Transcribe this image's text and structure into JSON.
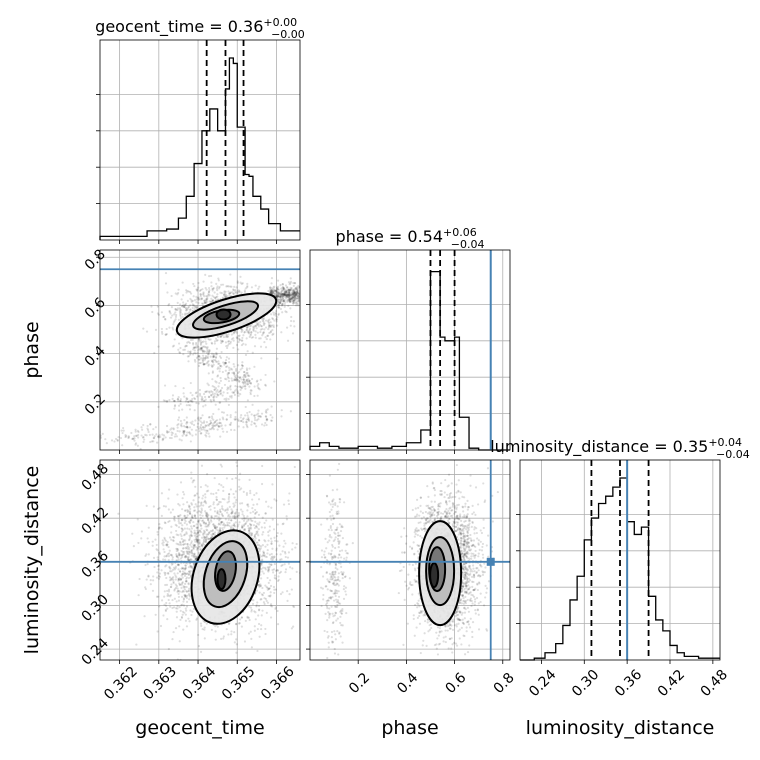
{
  "figure": {
    "params": [
      "geocent_time",
      "phase",
      "luminosity_distance"
    ],
    "injection_color": "#4682b4",
    "contour_fill_colors": [
      "#e6e6e6",
      "#b9b9b9",
      "#6f6f6f",
      "#262626"
    ]
  },
  "chart_data": [
    {
      "type": "histogram",
      "param": "geocent_time",
      "title": {
        "main": "geocent_time = 0.36",
        "sup": "+0.00",
        "sub": "−0.00"
      },
      "xlim": [
        0.3615,
        0.3666
      ],
      "grid": true,
      "quantiles": [
        0.36422,
        0.3647,
        0.36516
      ],
      "bins": [
        [
          0.3615,
          0.3627,
          0.02
        ],
        [
          0.3627,
          0.3632,
          0.05
        ],
        [
          0.3632,
          0.3635,
          0.06
        ],
        [
          0.3635,
          0.3637,
          0.12
        ],
        [
          0.3637,
          0.3639,
          0.24
        ],
        [
          0.3639,
          0.3641,
          0.42
        ],
        [
          0.3641,
          0.3643,
          0.6
        ],
        [
          0.3643,
          0.3645,
          0.72
        ],
        [
          0.3645,
          0.3647,
          0.6
        ],
        [
          0.3647,
          0.3648,
          0.83
        ],
        [
          0.3648,
          0.3649,
          1.0
        ],
        [
          0.3649,
          0.365,
          0.97
        ],
        [
          0.365,
          0.3652,
          0.62
        ],
        [
          0.3652,
          0.3653,
          0.36
        ],
        [
          0.3653,
          0.3654,
          0.35
        ],
        [
          0.3654,
          0.3656,
          0.24
        ],
        [
          0.3656,
          0.3658,
          0.17
        ],
        [
          0.3658,
          0.3661,
          0.09
        ],
        [
          0.3661,
          0.3666,
          0.05
        ]
      ]
    },
    {
      "type": "scatter",
      "params": [
        "geocent_time",
        "phase"
      ],
      "xlim": [
        0.3615,
        0.3666
      ],
      "ylim": [
        0.0,
        0.83
      ],
      "yticks": [
        "0.2",
        "0.4",
        "0.6",
        "0.8"
      ],
      "ytick_values": [
        0.2,
        0.4,
        0.6,
        0.8
      ],
      "ylabel": "phase",
      "injection_y": 0.75,
      "cluster": [
        0.36465,
        0.55
      ],
      "grid": true
    },
    {
      "type": "histogram",
      "param": "phase",
      "title": {
        "main": "phase = 0.54",
        "sup": "+0.06",
        "sub": "−0.04"
      },
      "xlim": [
        0.0,
        0.83
      ],
      "grid": true,
      "injection_x": 0.75,
      "quantiles": [
        0.5,
        0.54,
        0.6
      ],
      "bins": [
        [
          0.0,
          0.04,
          0.02
        ],
        [
          0.04,
          0.08,
          0.04
        ],
        [
          0.08,
          0.12,
          0.02
        ],
        [
          0.12,
          0.2,
          0.01
        ],
        [
          0.2,
          0.28,
          0.02
        ],
        [
          0.28,
          0.34,
          0.01
        ],
        [
          0.34,
          0.4,
          0.02
        ],
        [
          0.4,
          0.46,
          0.04
        ],
        [
          0.46,
          0.5,
          0.11
        ],
        [
          0.5,
          0.54,
          0.98
        ],
        [
          0.54,
          0.56,
          0.62
        ],
        [
          0.56,
          0.6,
          0.6
        ],
        [
          0.6,
          0.62,
          0.62
        ],
        [
          0.62,
          0.66,
          0.18
        ],
        [
          0.66,
          0.7,
          0.01
        ],
        [
          0.7,
          0.83,
          0.0
        ]
      ]
    },
    {
      "type": "scatter",
      "params": [
        "geocent_time",
        "luminosity_distance"
      ],
      "xlim": [
        0.3615,
        0.3666
      ],
      "ylim": [
        0.225,
        0.5
      ],
      "xticks": [
        "0.362",
        "0.363",
        "0.364",
        "0.365",
        "0.366"
      ],
      "xtick_values": [
        0.362,
        0.363,
        0.364,
        0.365,
        0.366
      ],
      "yticks": [
        "0.24",
        "0.30",
        "0.36",
        "0.42",
        "0.48"
      ],
      "ytick_values": [
        0.24,
        0.3,
        0.36,
        0.42,
        0.48
      ],
      "xlabel": "geocent_time",
      "ylabel": "luminosity_distance",
      "injection_y": 0.36,
      "cluster": [
        0.3647,
        0.35
      ],
      "grid": true
    },
    {
      "type": "scatter",
      "params": [
        "phase",
        "luminosity_distance"
      ],
      "xlim": [
        0.0,
        0.83
      ],
      "ylim": [
        0.225,
        0.5
      ],
      "xticks": [
        "0.2",
        "0.4",
        "0.6",
        "0.8"
      ],
      "xtick_values": [
        0.2,
        0.4,
        0.6,
        0.8
      ],
      "xlabel": "phase",
      "injection_x": 0.75,
      "injection_y": 0.36,
      "cluster": [
        0.54,
        0.35
      ],
      "grid": true
    },
    {
      "type": "histogram",
      "param": "luminosity_distance",
      "title": {
        "main": "luminosity_distance = 0.35",
        "sup": "+0.04",
        "sub": "−0.04"
      },
      "xlim": [
        0.21,
        0.49
      ],
      "xticks": [
        "0.24",
        "0.30",
        "0.36",
        "0.42",
        "0.48"
      ],
      "xtick_values": [
        0.24,
        0.3,
        0.36,
        0.42,
        0.48
      ],
      "xlabel": "luminosity_distance",
      "injection_x": 0.36,
      "quantiles": [
        0.31,
        0.35,
        0.39
      ],
      "grid": true,
      "bins": [
        [
          0.21,
          0.23,
          0.0
        ],
        [
          0.23,
          0.245,
          0.01
        ],
        [
          0.245,
          0.26,
          0.04
        ],
        [
          0.26,
          0.27,
          0.09
        ],
        [
          0.27,
          0.28,
          0.19
        ],
        [
          0.28,
          0.29,
          0.33
        ],
        [
          0.29,
          0.3,
          0.46
        ],
        [
          0.3,
          0.31,
          0.66
        ],
        [
          0.31,
          0.32,
          0.78
        ],
        [
          0.32,
          0.33,
          0.86
        ],
        [
          0.33,
          0.34,
          0.9
        ],
        [
          0.34,
          0.35,
          0.95
        ],
        [
          0.35,
          0.36,
          1.0
        ],
        [
          0.36,
          0.37,
          0.76
        ],
        [
          0.37,
          0.38,
          0.69
        ],
        [
          0.38,
          0.39,
          0.73
        ],
        [
          0.39,
          0.4,
          0.35
        ],
        [
          0.4,
          0.41,
          0.22
        ],
        [
          0.41,
          0.42,
          0.16
        ],
        [
          0.42,
          0.43,
          0.08
        ],
        [
          0.43,
          0.44,
          0.04
        ],
        [
          0.44,
          0.46,
          0.02
        ],
        [
          0.46,
          0.49,
          0.01
        ]
      ]
    }
  ]
}
